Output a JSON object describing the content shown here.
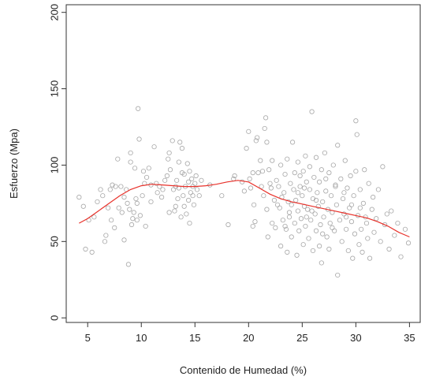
{
  "chart_data": {
    "type": "scatter",
    "title": "",
    "xlabel": "Contenido de Humedad (%)",
    "ylabel": "Esfuerzo (Mpa)",
    "xlim": [
      3,
      36
    ],
    "ylim": [
      -3,
      205
    ],
    "xticks": [
      5,
      10,
      15,
      20,
      25,
      30,
      35
    ],
    "yticks": [
      0,
      50,
      100,
      150,
      200
    ],
    "grid": false,
    "legend": "none",
    "colors": {
      "points": "#a6a6a6",
      "smooth_line": "#e8312a",
      "axes": "#333333"
    },
    "series": [
      {
        "kind": "scatter",
        "points": [
          [
            4.2,
            79
          ],
          [
            4.6,
            73
          ],
          [
            4.8,
            45
          ],
          [
            5.1,
            64
          ],
          [
            5.4,
            43
          ],
          [
            5.6,
            66
          ],
          [
            5.9,
            76
          ],
          [
            6.2,
            84
          ],
          [
            6.4,
            80
          ],
          [
            6.6,
            50
          ],
          [
            6.7,
            54
          ],
          [
            6.9,
            72
          ],
          [
            7.1,
            84
          ],
          [
            7.3,
            87
          ],
          [
            7.5,
            59
          ],
          [
            7.6,
            86
          ],
          [
            7.8,
            104
          ],
          [
            7.9,
            72
          ],
          [
            8.1,
            86
          ],
          [
            8.2,
            69
          ],
          [
            8.4,
            51
          ],
          [
            8.6,
            84
          ],
          [
            8.7,
            75
          ],
          [
            8.8,
            35
          ],
          [
            8.9,
            71
          ],
          [
            9.0,
            108
          ],
          [
            9.0,
            102
          ],
          [
            9.1,
            61
          ],
          [
            9.2,
            65
          ],
          [
            9.3,
            69
          ],
          [
            9.4,
            98
          ],
          [
            9.5,
            78
          ],
          [
            9.6,
            64
          ],
          [
            9.7,
            137
          ],
          [
            9.8,
            117
          ],
          [
            9.9,
            67
          ],
          [
            10.1,
            80
          ],
          [
            10.2,
            96
          ],
          [
            10.3,
            88
          ],
          [
            10.4,
            60
          ],
          [
            10.5,
            92
          ],
          [
            10.7,
            98
          ],
          [
            10.9,
            87
          ],
          [
            11.2,
            112
          ],
          [
            11.4,
            88
          ],
          [
            11.7,
            86
          ],
          [
            11.9,
            79
          ],
          [
            12.0,
            84
          ],
          [
            12.2,
            90
          ],
          [
            12.4,
            93
          ],
          [
            12.5,
            104
          ],
          [
            12.6,
            108
          ],
          [
            12.7,
            97
          ],
          [
            12.9,
            116
          ],
          [
            13.0,
            84
          ],
          [
            13.1,
            70
          ],
          [
            13.2,
            73
          ],
          [
            13.3,
            90
          ],
          [
            13.4,
            78
          ],
          [
            13.5,
            102
          ],
          [
            13.5,
            85
          ],
          [
            13.6,
            115
          ],
          [
            13.7,
            66
          ],
          [
            13.8,
            111
          ],
          [
            13.9,
            80
          ],
          [
            14.0,
            94
          ],
          [
            14.0,
            73
          ],
          [
            14.1,
            86
          ],
          [
            14.2,
            68
          ],
          [
            14.3,
            101
          ],
          [
            14.4,
            89
          ],
          [
            14.5,
            96
          ],
          [
            14.5,
            62
          ],
          [
            14.6,
            82
          ],
          [
            14.7,
            91
          ],
          [
            14.8,
            86
          ],
          [
            14.9,
            74
          ],
          [
            15.0,
            88
          ],
          [
            15.1,
            93
          ],
          [
            15.2,
            84
          ],
          [
            15.4,
            80
          ],
          [
            15.6,
            90
          ],
          [
            16.4,
            87
          ],
          [
            17.5,
            80
          ],
          [
            18.1,
            61
          ],
          [
            18.6,
            91
          ],
          [
            18.7,
            93
          ],
          [
            19.4,
            89
          ],
          [
            19.6,
            83
          ],
          [
            19.8,
            111
          ],
          [
            20.0,
            122
          ],
          [
            20.1,
            91
          ],
          [
            20.2,
            85
          ],
          [
            20.4,
            95
          ],
          [
            20.4,
            60
          ],
          [
            20.5,
            74
          ],
          [
            20.6,
            63
          ],
          [
            20.7,
            116
          ],
          [
            20.8,
            118
          ],
          [
            20.9,
            95
          ],
          [
            21.1,
            103
          ],
          [
            21.2,
            86
          ],
          [
            21.4,
            80
          ],
          [
            21.5,
            124
          ],
          [
            21.6,
            131
          ],
          [
            21.7,
            115
          ],
          [
            21.7,
            71
          ],
          [
            21.8,
            53
          ],
          [
            21.9,
            97
          ],
          [
            22.1,
            85
          ],
          [
            22.2,
            103
          ],
          [
            22.2,
            62
          ],
          [
            22.4,
            77
          ],
          [
            22.5,
            59
          ],
          [
            22.6,
            90
          ],
          [
            22.8,
            86
          ],
          [
            22.9,
            72
          ],
          [
            23.0,
            47
          ],
          [
            23.0,
            100
          ],
          [
            23.2,
            64
          ],
          [
            23.3,
            82
          ],
          [
            23.4,
            94
          ],
          [
            23.5,
            58
          ],
          [
            23.6,
            104
          ],
          [
            23.6,
            43
          ],
          [
            23.7,
            76
          ],
          [
            23.8,
            69
          ],
          [
            23.9,
            88
          ],
          [
            24.0,
            53
          ],
          [
            24.1,
            115
          ],
          [
            24.2,
            84
          ],
          [
            24.3,
            62
          ],
          [
            24.3,
            95
          ],
          [
            24.4,
            77
          ],
          [
            24.5,
            41
          ],
          [
            24.6,
            102
          ],
          [
            24.6,
            70
          ],
          [
            24.7,
            57
          ],
          [
            24.8,
            86
          ],
          [
            24.9,
            65
          ],
          [
            25.0,
            80
          ],
          [
            25.1,
            96
          ],
          [
            25.1,
            48
          ],
          [
            25.2,
            73
          ],
          [
            25.3,
            106
          ],
          [
            25.3,
            60
          ],
          [
            25.4,
            89
          ],
          [
            25.5,
            71
          ],
          [
            25.6,
            52
          ],
          [
            25.7,
            84
          ],
          [
            25.7,
            99
          ],
          [
            25.8,
            64
          ],
          [
            25.9,
            135
          ],
          [
            26.0,
            78
          ],
          [
            26.0,
            44
          ],
          [
            26.1,
            92
          ],
          [
            26.2,
            68
          ],
          [
            26.3,
            105
          ],
          [
            26.3,
            57
          ],
          [
            26.4,
            82
          ],
          [
            26.5,
            73
          ],
          [
            26.6,
            89
          ],
          [
            26.7,
            61
          ],
          [
            26.8,
            97
          ],
          [
            26.8,
            36
          ],
          [
            26.9,
            76
          ],
          [
            27.0,
            66
          ],
          [
            27.1,
            108
          ],
          [
            27.2,
            83
          ],
          [
            27.3,
            53
          ],
          [
            27.4,
            71
          ],
          [
            27.5,
            95
          ],
          [
            27.5,
            45
          ],
          [
            27.6,
            62
          ],
          [
            27.7,
            80
          ],
          [
            27.8,
            69
          ],
          [
            27.9,
            100
          ],
          [
            28.0,
            57
          ],
          [
            28.1,
            86
          ],
          [
            28.2,
            74
          ],
          [
            28.3,
            113
          ],
          [
            28.3,
            28
          ],
          [
            28.5,
            64
          ],
          [
            28.6,
            91
          ],
          [
            28.7,
            50
          ],
          [
            28.8,
            78
          ],
          [
            28.9,
            68
          ],
          [
            29.0,
            103
          ],
          [
            29.1,
            58
          ],
          [
            29.2,
            85
          ],
          [
            29.3,
            44
          ],
          [
            29.4,
            72
          ],
          [
            29.5,
            93
          ],
          [
            29.6,
            63
          ],
          [
            29.7,
            39
          ],
          [
            29.8,
            80
          ],
          [
            29.9,
            55
          ],
          [
            30.0,
            96
          ],
          [
            30.0,
            129
          ],
          [
            30.1,
            120
          ],
          [
            30.2,
            67
          ],
          [
            30.3,
            48
          ],
          [
            30.4,
            84
          ],
          [
            30.5,
            58
          ],
          [
            30.6,
            43
          ],
          [
            30.7,
            75
          ],
          [
            30.8,
            97
          ],
          [
            31.0,
            62
          ],
          [
            31.1,
            52
          ],
          [
            31.2,
            88
          ],
          [
            31.3,
            39
          ],
          [
            31.5,
            71
          ],
          [
            31.7,
            56
          ],
          [
            31.9,
            65
          ],
          [
            32.1,
            84
          ],
          [
            32.3,
            50
          ],
          [
            32.5,
            99
          ],
          [
            32.7,
            61
          ],
          [
            32.9,
            68
          ],
          [
            33.1,
            45
          ],
          [
            33.3,
            70
          ],
          [
            33.6,
            54
          ],
          [
            33.9,
            62
          ],
          [
            34.2,
            40
          ],
          [
            34.6,
            58
          ],
          [
            34.9,
            49
          ],
          [
            21.3,
            96
          ],
          [
            22.0,
            88
          ],
          [
            23.1,
            79
          ],
          [
            24.8,
            93
          ],
          [
            25.4,
            66
          ],
          [
            26.6,
            47
          ],
          [
            27.8,
            59
          ],
          [
            28.9,
            82
          ],
          [
            29.6,
            74
          ],
          [
            30.9,
            66
          ],
          [
            24.0,
            74
          ],
          [
            26.3,
            77
          ],
          [
            28.1,
            87
          ],
          [
            27.2,
            91
          ],
          [
            25.9,
            70
          ],
          [
            23.8,
            66
          ],
          [
            22.7,
            74
          ],
          [
            24.6,
            82
          ],
          [
            26.9,
            55
          ],
          [
            29.1,
            66
          ],
          [
            30.4,
            72
          ],
          [
            31.6,
            79
          ],
          [
            25.2,
            85
          ],
          [
            23.4,
            60
          ],
          [
            12.6,
            69
          ],
          [
            13.2,
            86
          ],
          [
            14.8,
            80
          ],
          [
            10.9,
            76
          ],
          [
            8.4,
            79
          ],
          [
            7.2,
            64
          ],
          [
            9.6,
            75
          ],
          [
            11.5,
            82
          ],
          [
            14.4,
            77
          ],
          [
            13.8,
            95
          ]
        ]
      },
      {
        "kind": "smooth",
        "points": [
          [
            4.2,
            62
          ],
          [
            5.0,
            65
          ],
          [
            6.0,
            70
          ],
          [
            7.0,
            75
          ],
          [
            8.0,
            80
          ],
          [
            9.0,
            84
          ],
          [
            10.0,
            86.5
          ],
          [
            11.0,
            87.5
          ],
          [
            12.0,
            87
          ],
          [
            13.0,
            86.5
          ],
          [
            14.0,
            86
          ],
          [
            15.0,
            86
          ],
          [
            16.0,
            86.5
          ],
          [
            17.0,
            87.5
          ],
          [
            18.0,
            89
          ],
          [
            19.0,
            90
          ],
          [
            20.0,
            89
          ],
          [
            21.0,
            85
          ],
          [
            22.0,
            81
          ],
          [
            23.0,
            78
          ],
          [
            24.0,
            76
          ],
          [
            25.0,
            74.5
          ],
          [
            26.0,
            73
          ],
          [
            27.0,
            71.5
          ],
          [
            28.0,
            70
          ],
          [
            29.0,
            68.5
          ],
          [
            30.0,
            67
          ],
          [
            31.0,
            65.5
          ],
          [
            32.0,
            63
          ],
          [
            33.0,
            60
          ],
          [
            34.0,
            56
          ],
          [
            35.0,
            53
          ]
        ]
      }
    ]
  }
}
